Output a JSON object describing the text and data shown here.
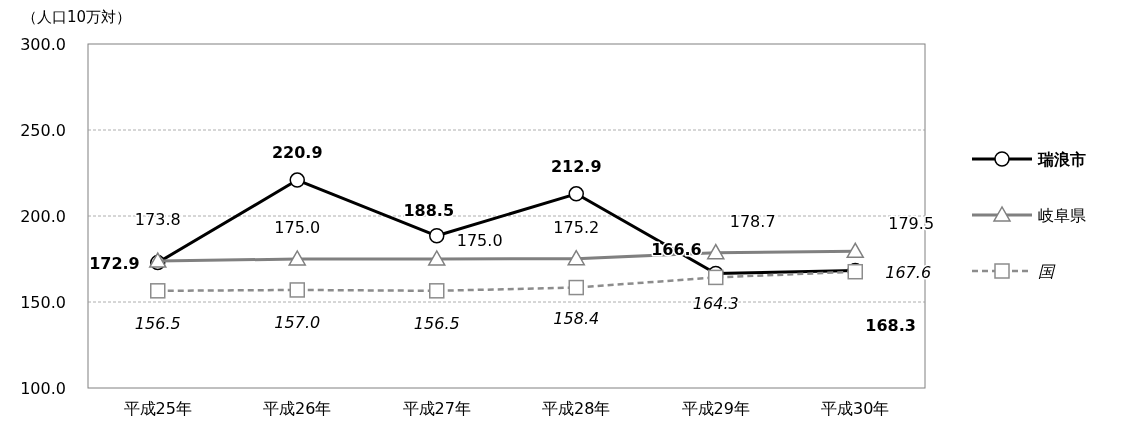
{
  "chart_data": {
    "type": "line",
    "ylabel": "（人口10万対）",
    "categories": [
      "平成25年",
      "平成26年",
      "平成27年",
      "平成28年",
      "平成29年",
      "平成30年"
    ],
    "ylim": [
      100,
      300
    ],
    "yticks": [
      {
        "value": 100,
        "label": "100.0"
      },
      {
        "value": 150,
        "label": "150.0"
      },
      {
        "value": 200,
        "label": "200.0"
      },
      {
        "value": 250,
        "label": "250.0"
      },
      {
        "value": 300,
        "label": "300.0"
      }
    ],
    "grid": "y",
    "legend": "right",
    "series": [
      {
        "name": "瑞浪市",
        "color": "#000000",
        "marker": "circle",
        "line_style": "solid",
        "values": [
          172.9,
          220.9,
          188.5,
          212.9,
          166.6,
          168.3
        ],
        "value_labels": [
          "172.9",
          "220.9",
          "188.5",
          "212.9",
          "166.6",
          "168.3"
        ]
      },
      {
        "name": "岐阜県",
        "color": "#808080",
        "marker": "triangle",
        "line_style": "solid",
        "values": [
          173.8,
          175.0,
          175.0,
          175.2,
          178.7,
          179.5
        ],
        "value_labels": [
          "173.8",
          "175.0",
          "175.0",
          "175.2",
          "178.7",
          "179.5"
        ]
      },
      {
        "name": "国",
        "color": "#8c8c8c",
        "marker": "square",
        "line_style": "dashed",
        "values": [
          156.5,
          157.0,
          156.5,
          158.4,
          164.3,
          167.6
        ],
        "value_labels": [
          "156.5",
          "157.0",
          "156.5",
          "158.4",
          "164.3",
          "167.6"
        ]
      }
    ]
  }
}
